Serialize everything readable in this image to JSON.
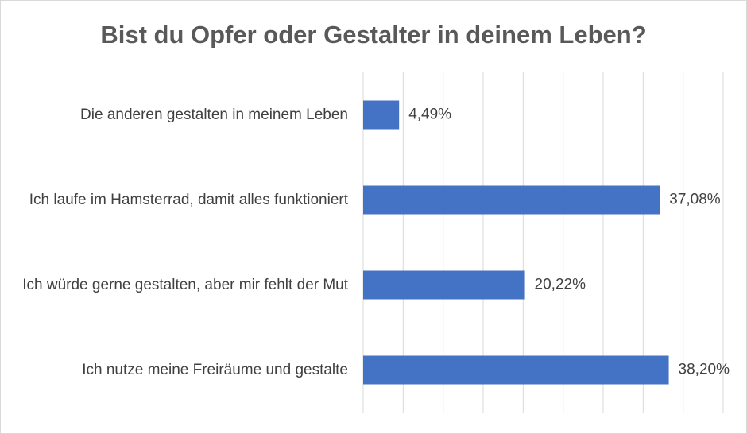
{
  "chart_data": {
    "type": "bar",
    "orientation": "horizontal",
    "title": "Bist du Opfer oder Gestalter in deinem Leben?",
    "categories": [
      "Die anderen gestalten in meinem Leben",
      "Ich laufe im Hamsterrad, damit alles funktioniert",
      "Ich würde gerne gestalten, aber mir fehlt der Mut",
      "Ich nutze meine Freiräume und gestalte"
    ],
    "values": [
      4.49,
      37.08,
      20.22,
      38.2
    ],
    "value_labels": [
      "4,49%",
      "37,08%",
      "20,22%",
      "38,20%"
    ],
    "color": "#4472c4",
    "xlim": [
      0,
      45
    ],
    "xticks": [
      0,
      5,
      10,
      15,
      20,
      25,
      30,
      35,
      40,
      45
    ],
    "grid": true
  }
}
